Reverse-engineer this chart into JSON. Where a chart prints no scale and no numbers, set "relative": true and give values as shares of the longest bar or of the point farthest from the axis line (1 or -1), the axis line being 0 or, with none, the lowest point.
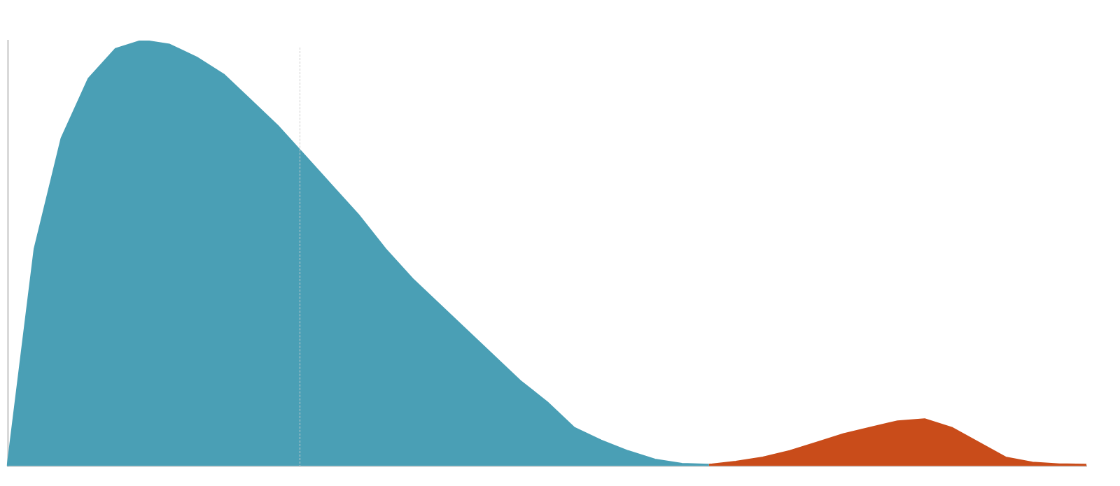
{
  "chart_data": {
    "type": "area",
    "relative": true,
    "categories": [
      null,
      null,
      null,
      null,
      null,
      null,
      null,
      null,
      null,
      null,
      null,
      null,
      null,
      null,
      null,
      null,
      null,
      null,
      null,
      null,
      null,
      null,
      null,
      null,
      null,
      null,
      null,
      null,
      null,
      null,
      null,
      null,
      null,
      null,
      null,
      null,
      null,
      null,
      null,
      null,
      null
    ],
    "series": [
      {
        "color": "#4a9fb5",
        "values": [
          0,
          0.51,
          0.77,
          0.91,
          0.98,
          1,
          0.99,
          0.96,
          0.92,
          0.86,
          0.8,
          0.73,
          0.66,
          0.59,
          0.51,
          0.44,
          0.38,
          0.32,
          0.26,
          0.2,
          0.15,
          0.09,
          0.06,
          0.035,
          0.015,
          0.005,
          0.003,
          null,
          null,
          null,
          null,
          null,
          null,
          null,
          null,
          null,
          null,
          null,
          null,
          null,
          null
        ]
      },
      {
        "color": "#c94c1a",
        "values": [
          null,
          null,
          null,
          null,
          null,
          null,
          null,
          null,
          null,
          null,
          null,
          null,
          null,
          null,
          null,
          null,
          null,
          null,
          null,
          null,
          null,
          null,
          null,
          null,
          null,
          null,
          0.003,
          0.01,
          0.02,
          0.035,
          0.055,
          0.075,
          0.09,
          0.105,
          0.11,
          0.09,
          0.055,
          0.02,
          0.008,
          0.004,
          0.003
        ]
      }
    ]
  }
}
